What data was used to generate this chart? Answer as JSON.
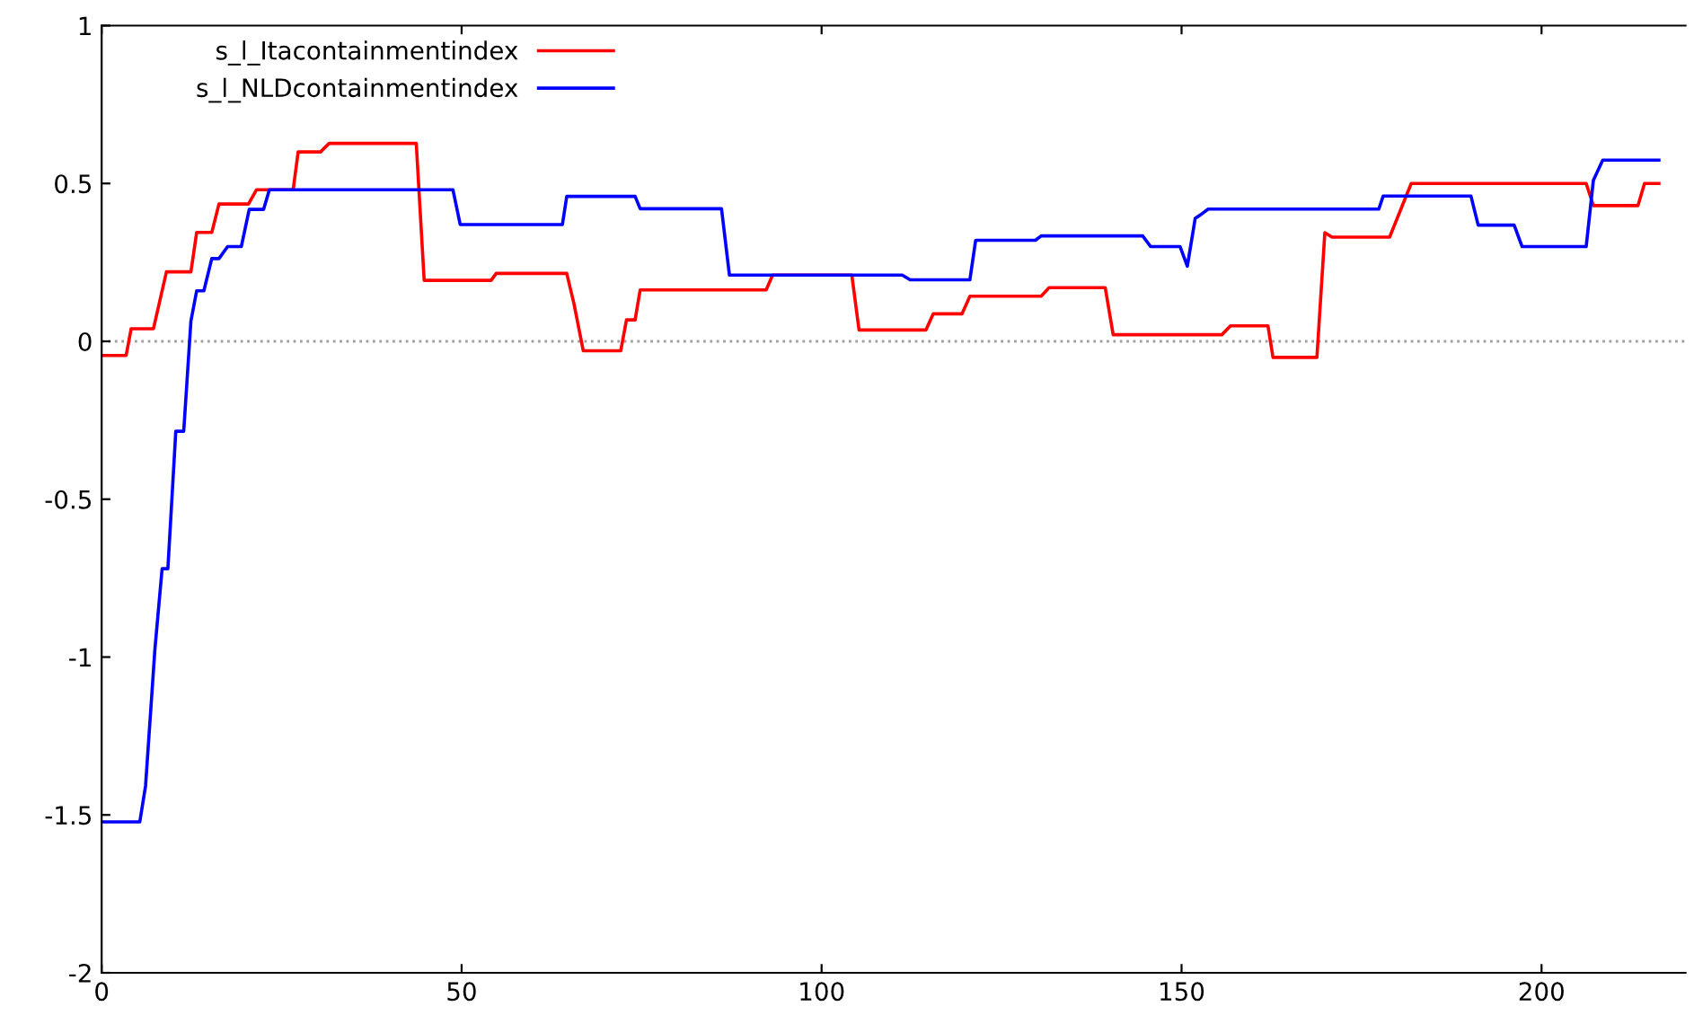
{
  "chart_data": {
    "type": "line",
    "xlim": [
      0,
      220
    ],
    "ylim": [
      -2,
      1
    ],
    "xticks": [
      0,
      50,
      100,
      150,
      200
    ],
    "yticks": [
      -2,
      -1.5,
      -1,
      -0.5,
      0,
      0.5,
      1
    ],
    "grid": false,
    "legend": "top left",
    "line_style": "solid",
    "marker": "none",
    "ref_lines": [
      {
        "axis": "y",
        "value": 0,
        "color": "#a0a0a0",
        "line_style": "dotted"
      }
    ],
    "series": [
      {
        "name": "s_l_Itacontainmentindex",
        "color": "#ff0000",
        "x": [
          0,
          3.4,
          4.1,
          7.2,
          9,
          12.4,
          13.2,
          15.3,
          16.3,
          20.4,
          21.5,
          26.6,
          27.3,
          30.4,
          31.6,
          43.7,
          44.8,
          54.1,
          54.8,
          64.6,
          65.6,
          66.9,
          72.1,
          72.9,
          74.1,
          74.8,
          92.3,
          93.2,
          104.2,
          105.2,
          114.5,
          115.5,
          119.5,
          120.6,
          130.5,
          131.6,
          139.4,
          140.5,
          155.6,
          156.8,
          162,
          162.7,
          168.8,
          169.9,
          170.9,
          178.9,
          181.9,
          206.2,
          207.2,
          213.4,
          214.3,
          216.3
        ],
        "values": [
          -0.045,
          -0.045,
          0.04,
          0.04,
          0.22,
          0.22,
          0.345,
          0.345,
          0.435,
          0.435,
          0.48,
          0.48,
          0.6,
          0.6,
          0.627,
          0.627,
          0.193,
          0.193,
          0.215,
          0.215,
          0.12,
          -0.03,
          -0.03,
          0.068,
          0.068,
          0.163,
          0.163,
          0.21,
          0.21,
          0.036,
          0.036,
          0.087,
          0.087,
          0.143,
          0.143,
          0.17,
          0.17,
          0.021,
          0.021,
          0.049,
          0.049,
          -0.051,
          -0.051,
          0.344,
          0.33,
          0.33,
          0.5,
          0.5,
          0.43,
          0.43,
          0.5,
          0.5
        ]
      },
      {
        "name": "s_l_NLDcontainmentindex",
        "color": "#0000ff",
        "x": [
          0,
          5.3,
          6.1,
          7.4,
          8.4,
          9.2,
          10.3,
          11.4,
          12.4,
          13.2,
          14.2,
          15.3,
          16.3,
          17.5,
          19.4,
          20.5,
          22.5,
          23.3,
          48.8,
          49.8,
          64,
          64.6,
          74.1,
          74.8,
          86.1,
          87.2,
          111.2,
          112.3,
          120.6,
          121.4,
          129.7,
          130.5,
          144.6,
          145.7,
          149.8,
          150.8,
          151.9,
          152.6,
          153.7,
          177.4,
          178,
          190.2,
          191.2,
          196.2,
          197.3,
          206.2,
          207.2,
          208.5,
          216.3
        ],
        "values": [
          -1.522,
          -1.522,
          -1.408,
          -0.975,
          -0.72,
          -0.72,
          -0.285,
          -0.285,
          0.064,
          0.16,
          0.16,
          0.262,
          0.262,
          0.3,
          0.3,
          0.418,
          0.418,
          0.48,
          0.48,
          0.37,
          0.37,
          0.459,
          0.459,
          0.42,
          0.42,
          0.21,
          0.21,
          0.195,
          0.195,
          0.32,
          0.32,
          0.334,
          0.334,
          0.3,
          0.3,
          0.238,
          0.39,
          0.4,
          0.419,
          0.419,
          0.46,
          0.46,
          0.368,
          0.368,
          0.3,
          0.3,
          0.51,
          0.574,
          0.574
        ]
      }
    ]
  }
}
